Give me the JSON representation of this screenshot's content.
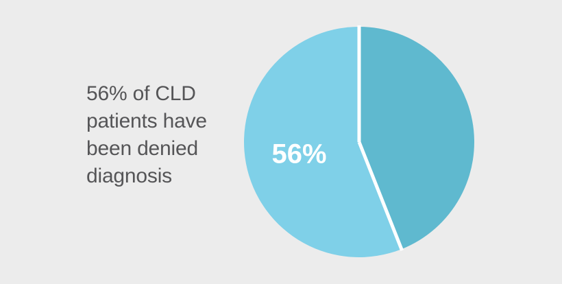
{
  "caption": {
    "lines": [
      "56% of CLD",
      "patients have",
      "been denied",
      "diagnosis"
    ]
  },
  "colors": {
    "background": "#ececec",
    "slice_denied": "#7fd0e8",
    "slice_other": "#5fb9cf",
    "separator": "#ffffff",
    "caption_text": "#555557",
    "label_text": "#ffffff"
  },
  "chart_data": {
    "type": "pie",
    "title": "",
    "slices": [
      {
        "value": 56,
        "label": "56%",
        "color": "#7fd0e8"
      },
      {
        "value": 44,
        "label": "",
        "color": "#5fb9cf"
      }
    ]
  }
}
